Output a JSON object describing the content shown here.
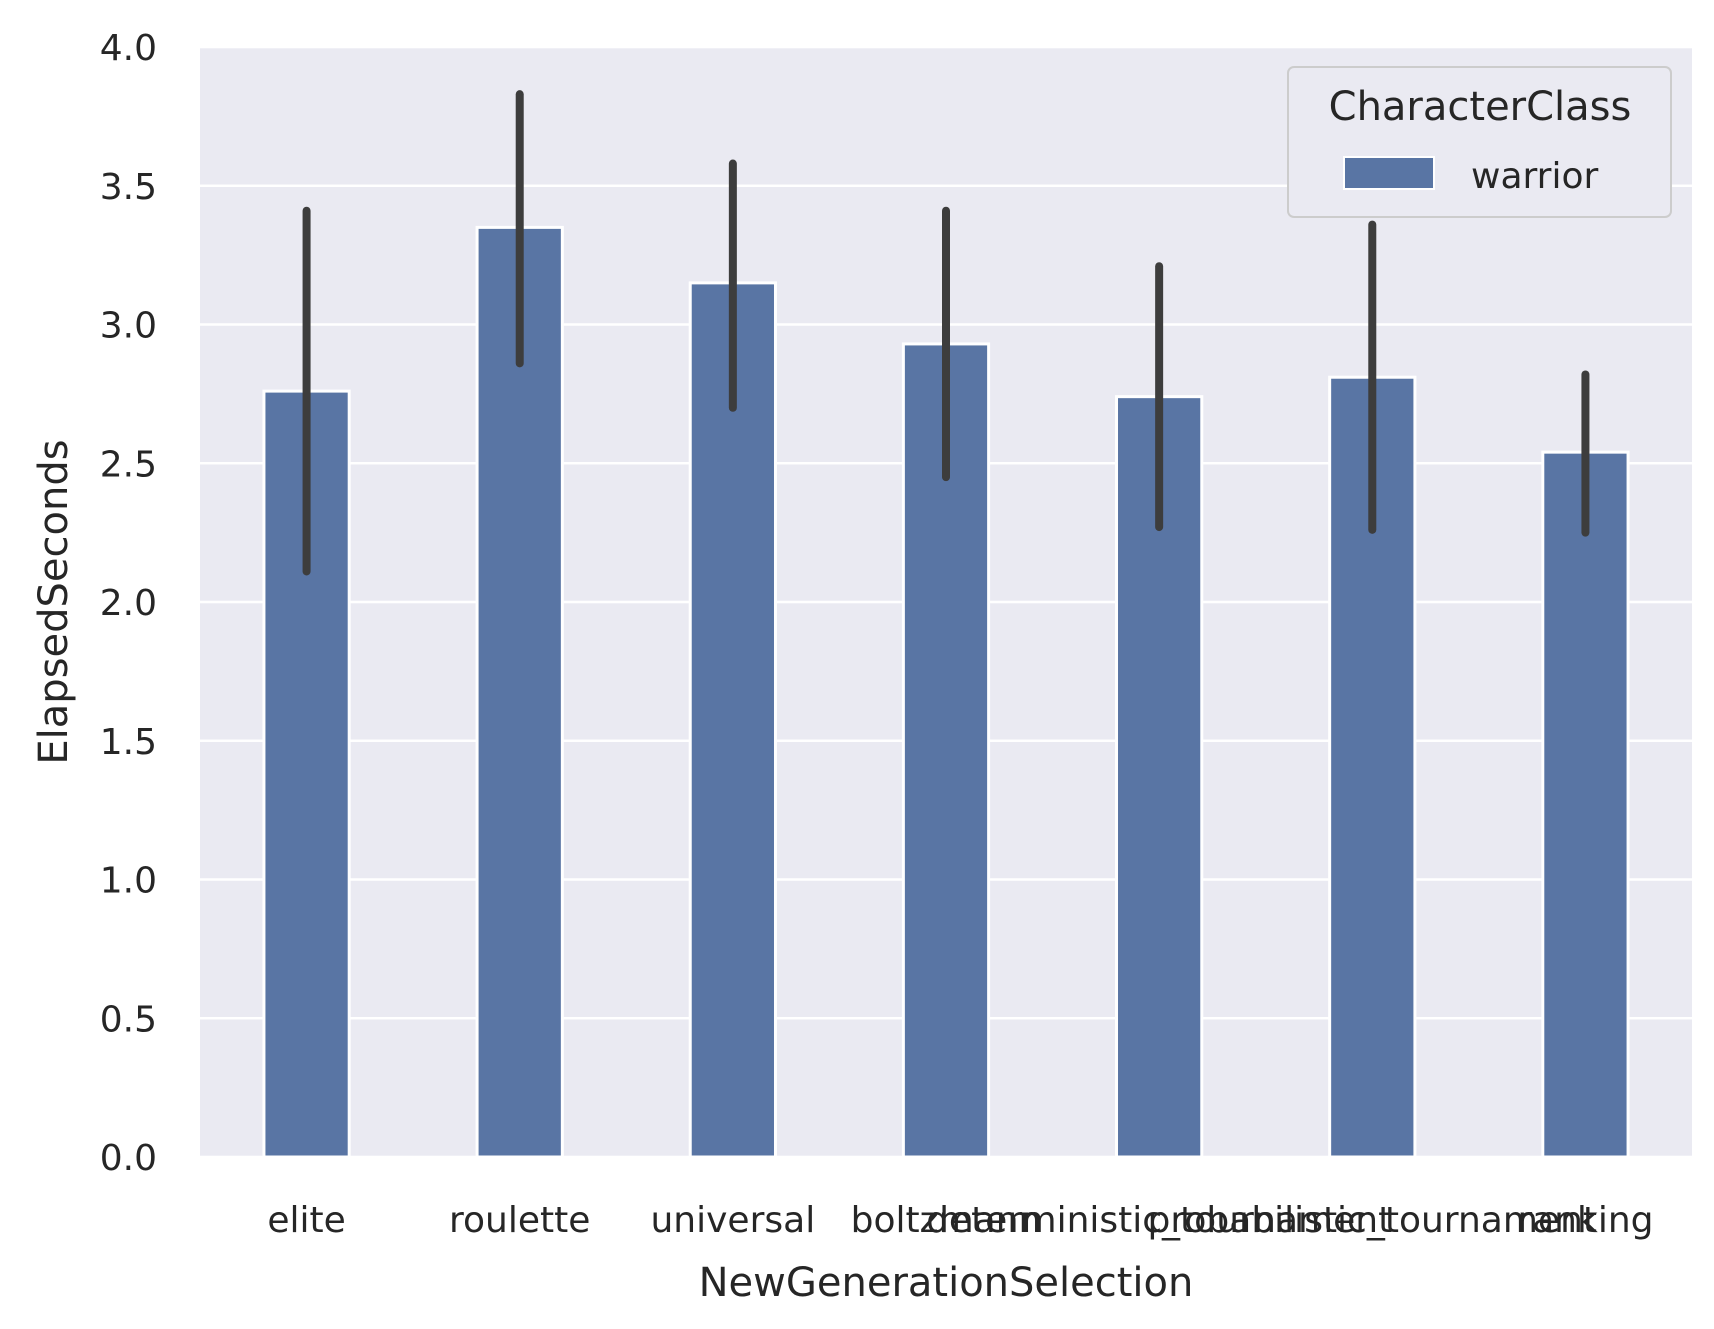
{
  "chart_data": {
    "type": "bar",
    "title": "",
    "xlabel": "NewGenerationSelection",
    "ylabel": "ElapsedSeconds",
    "ylim": [
      0,
      4.0
    ],
    "yticks": [
      "0.0",
      "0.5",
      "1.0",
      "1.5",
      "2.0",
      "2.5",
      "3.0",
      "3.5",
      "4.0"
    ],
    "categories": [
      "elite",
      "roulette",
      "universal",
      "boltzmann",
      "deterministic_tournament",
      "probabilistic_tournament",
      "ranking"
    ],
    "series": [
      {
        "name": "warrior",
        "values": [
          2.76,
          3.35,
          3.15,
          2.93,
          2.74,
          2.81,
          2.54
        ],
        "ci_low": [
          2.11,
          2.86,
          2.7,
          2.45,
          2.27,
          2.26,
          2.25
        ],
        "ci_high": [
          3.41,
          3.83,
          3.58,
          3.41,
          3.21,
          3.36,
          2.82
        ]
      }
    ],
    "grid": true,
    "legend": {
      "title": "CharacterClass",
      "position": "top-right"
    },
    "colors": {
      "bar": "#5975a4",
      "background": "#eaeaf2",
      "grid": "#ffffff",
      "errorbar": "#3d3d3d",
      "text": "#262626"
    }
  }
}
